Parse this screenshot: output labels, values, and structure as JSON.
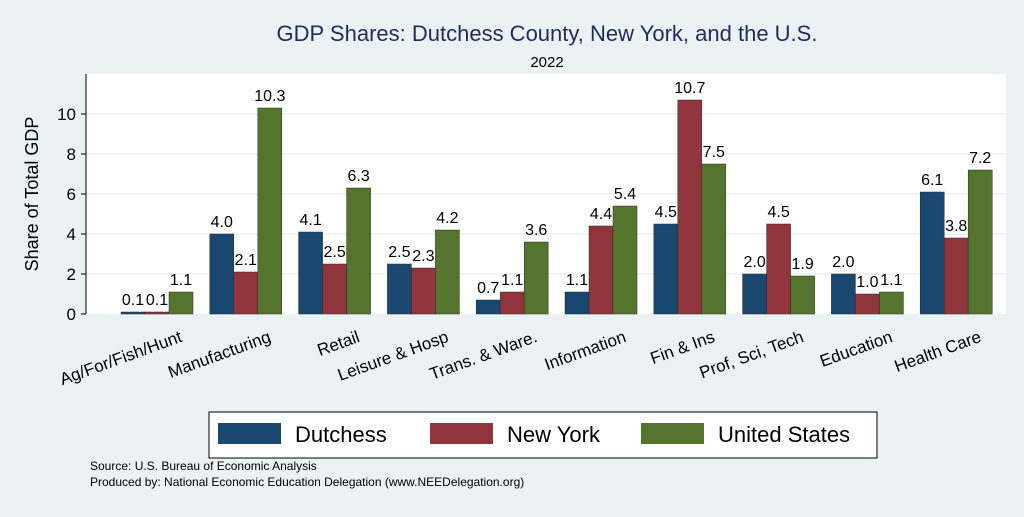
{
  "chart_data": {
    "type": "bar",
    "title": "GDP Shares: Dutchess County, New York, and the U.S.",
    "subtitle": "2022",
    "xlabel": "",
    "ylabel": "Share of Total GDP",
    "ylim": [
      0,
      12
    ],
    "yticks": [
      0,
      2,
      4,
      6,
      8,
      10
    ],
    "grid": true,
    "legend_position": "bottom",
    "categories": [
      "Ag/For/Fish/Hunt",
      "Manufacturing",
      "Retail",
      "Leisure & Hosp",
      "Trans. & Ware.",
      "Information",
      "Fin & Ins",
      "Prof, Sci, Tech",
      "Education",
      "Health Care"
    ],
    "series": [
      {
        "name": "Dutchess",
        "color": "#1a476f",
        "values": [
          0.1,
          4.0,
          4.1,
          2.5,
          0.7,
          1.1,
          4.5,
          2.0,
          2.0,
          6.1
        ]
      },
      {
        "name": "New York",
        "color": "#90353b",
        "values": [
          0.1,
          2.1,
          2.5,
          2.3,
          1.1,
          4.4,
          10.7,
          4.5,
          1.0,
          3.8
        ]
      },
      {
        "name": "United States",
        "color": "#55752f",
        "values": [
          1.1,
          10.3,
          6.3,
          4.2,
          3.6,
          5.4,
          7.5,
          1.9,
          1.1,
          7.2
        ]
      }
    ]
  },
  "notes": {
    "source": "Source: U.S. Bureau of Economic Analysis",
    "produced_by": "Produced by: National Economic Education Delegation (www.NEEDelegation.org)"
  },
  "colors": {
    "background": "#eaf2f3",
    "plot_background": "#ffffff",
    "title": "#1e2d5c"
  }
}
